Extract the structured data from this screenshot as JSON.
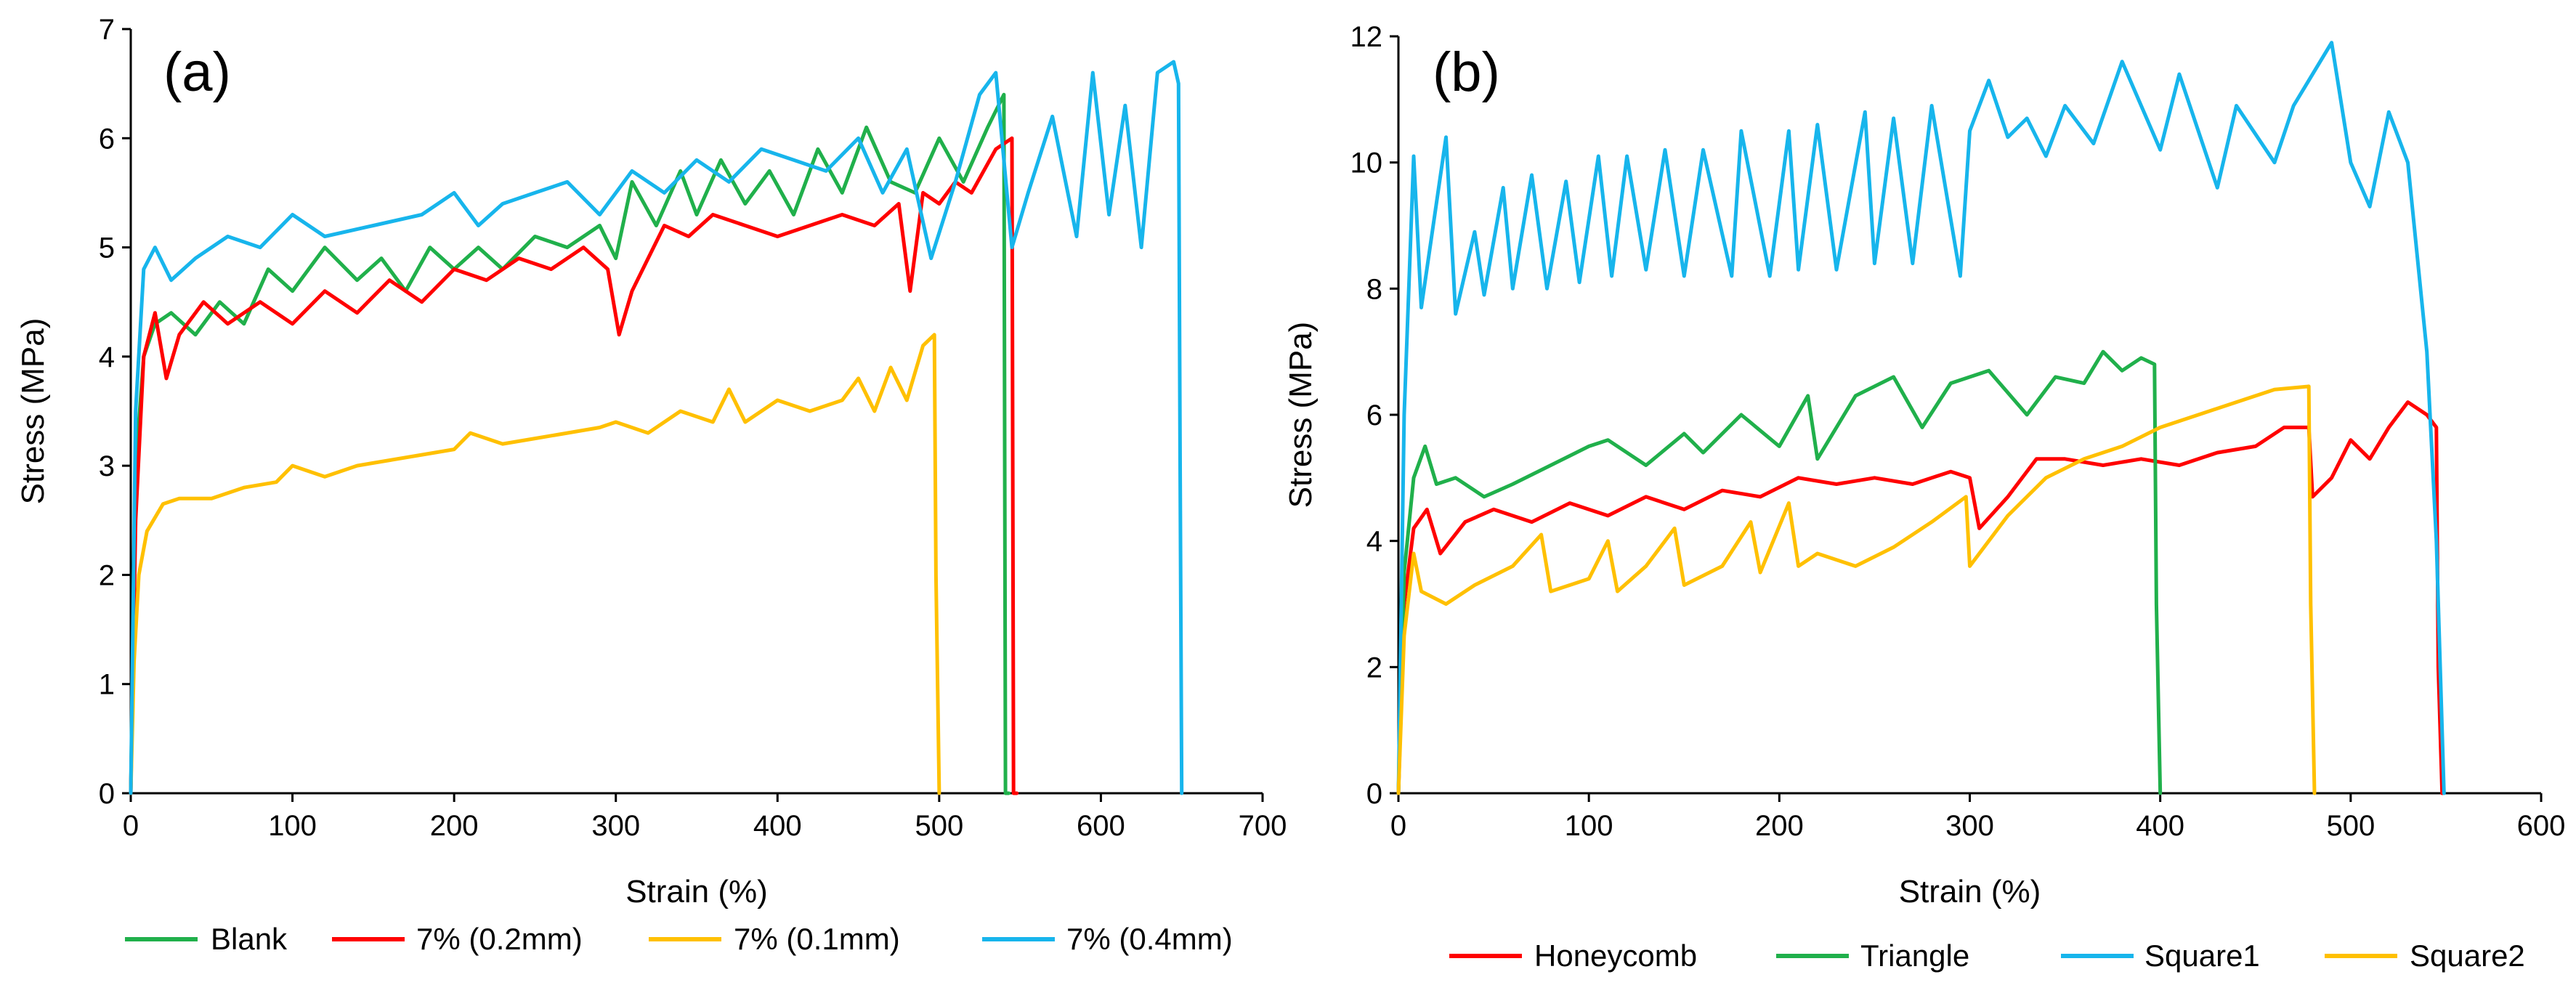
{
  "chart_data": [
    {
      "type": "line",
      "panel_label": "(a)",
      "xlabel": "Strain (%)",
      "ylabel": "Stress (MPa)",
      "xlim": [
        0,
        700
      ],
      "ylim": [
        0,
        7
      ],
      "xticks": [
        "0",
        "100",
        "200",
        "300",
        "400",
        "500",
        "600",
        "700"
      ],
      "yticks": [
        "0",
        "1",
        "2",
        "3",
        "4",
        "5",
        "6",
        "7"
      ],
      "series": [
        {
          "name": "Blank",
          "color": "#20B04B",
          "x": [
            0,
            3,
            8,
            15,
            25,
            40,
            55,
            70,
            85,
            100,
            120,
            140,
            155,
            170,
            185,
            200,
            215,
            230,
            250,
            270,
            290,
            300,
            310,
            325,
            340,
            350,
            365,
            380,
            395,
            410,
            425,
            440,
            455,
            470,
            485,
            500,
            515,
            530,
            540,
            541,
            543
          ],
          "y": [
            0,
            3.0,
            4.0,
            4.3,
            4.4,
            4.2,
            4.5,
            4.3,
            4.8,
            4.6,
            5.0,
            4.7,
            4.9,
            4.6,
            5.0,
            4.8,
            5.0,
            4.8,
            5.1,
            5.0,
            5.2,
            4.9,
            5.6,
            5.2,
            5.7,
            5.3,
            5.8,
            5.4,
            5.7,
            5.3,
            5.9,
            5.5,
            6.1,
            5.6,
            5.5,
            6.0,
            5.6,
            6.1,
            6.4,
            0,
            0
          ]
        },
        {
          "name": "7% (0.2mm)",
          "color": "#FF0000",
          "x": [
            0,
            3,
            8,
            15,
            22,
            30,
            45,
            60,
            80,
            100,
            120,
            140,
            160,
            180,
            200,
            220,
            240,
            260,
            280,
            295,
            302,
            310,
            320,
            330,
            345,
            360,
            380,
            400,
            420,
            440,
            460,
            475,
            482,
            490,
            500,
            510,
            520,
            535,
            545,
            546,
            548
          ],
          "y": [
            0,
            2.5,
            4.0,
            4.4,
            3.8,
            4.2,
            4.5,
            4.3,
            4.5,
            4.3,
            4.6,
            4.4,
            4.7,
            4.5,
            4.8,
            4.7,
            4.9,
            4.8,
            5.0,
            4.8,
            4.2,
            4.6,
            4.9,
            5.2,
            5.1,
            5.3,
            5.2,
            5.1,
            5.2,
            5.3,
            5.2,
            5.4,
            4.6,
            5.5,
            5.4,
            5.6,
            5.5,
            5.9,
            6.0,
            0,
            0
          ]
        },
        {
          "name": "7% (0.1mm)",
          "color": "#FFC000",
          "x": [
            0,
            2,
            5,
            10,
            20,
            30,
            50,
            70,
            90,
            100,
            120,
            140,
            160,
            180,
            200,
            210,
            230,
            250,
            270,
            290,
            300,
            320,
            340,
            360,
            370,
            380,
            400,
            420,
            440,
            450,
            460,
            470,
            480,
            490,
            497,
            498,
            500
          ],
          "y": [
            0,
            1.2,
            2.0,
            2.4,
            2.65,
            2.7,
            2.7,
            2.8,
            2.85,
            3.0,
            2.9,
            3.0,
            3.05,
            3.1,
            3.15,
            3.3,
            3.2,
            3.25,
            3.3,
            3.35,
            3.4,
            3.3,
            3.5,
            3.4,
            3.7,
            3.4,
            3.6,
            3.5,
            3.6,
            3.8,
            3.5,
            3.9,
            3.6,
            4.1,
            4.2,
            2.0,
            0
          ]
        },
        {
          "name": "7% (0.4mm)",
          "color": "#17B5EC",
          "x": [
            0,
            3,
            8,
            15,
            25,
            40,
            60,
            80,
            100,
            120,
            150,
            180,
            200,
            215,
            230,
            250,
            270,
            290,
            310,
            330,
            350,
            370,
            390,
            410,
            430,
            450,
            465,
            480,
            495,
            510,
            525,
            535,
            545,
            555,
            570,
            585,
            595,
            605,
            615,
            625,
            635,
            645,
            648,
            649,
            650
          ],
          "y": [
            0,
            3.5,
            4.8,
            5.0,
            4.7,
            4.9,
            5.1,
            5.0,
            5.3,
            5.1,
            5.2,
            5.3,
            5.5,
            5.2,
            5.4,
            5.5,
            5.6,
            5.3,
            5.7,
            5.5,
            5.8,
            5.6,
            5.9,
            5.8,
            5.7,
            6.0,
            5.5,
            5.9,
            4.9,
            5.6,
            6.4,
            6.6,
            5.0,
            5.5,
            6.2,
            5.1,
            6.6,
            5.3,
            6.3,
            5.0,
            6.6,
            6.7,
            6.5,
            3.0,
            0
          ]
        }
      ],
      "legend": [
        "Blank",
        "7% (0.2mm)",
        "7% (0.1mm)",
        "7% (0.4mm)"
      ],
      "legend_position": "bottom"
    },
    {
      "type": "line",
      "panel_label": "(b)",
      "xlabel": "Strain (%)",
      "ylabel": "Stress (MPa)",
      "xlim": [
        0,
        600
      ],
      "ylim": [
        0,
        12
      ],
      "xticks": [
        "0",
        "100",
        "200",
        "300",
        "400",
        "500",
        "600"
      ],
      "yticks": [
        "0",
        "2",
        "4",
        "6",
        "8",
        "10",
        "12"
      ],
      "series": [
        {
          "name": "Honeycomb",
          "color": "#FF0000",
          "x": [
            0,
            3,
            8,
            15,
            22,
            35,
            50,
            70,
            90,
            110,
            130,
            150,
            170,
            190,
            210,
            230,
            250,
            270,
            290,
            300,
            305,
            320,
            335,
            350,
            370,
            390,
            410,
            430,
            450,
            465,
            478,
            480,
            490,
            500,
            510,
            520,
            530,
            540,
            545,
            546,
            548
          ],
          "y": [
            0,
            3.0,
            4.2,
            4.5,
            3.8,
            4.3,
            4.5,
            4.3,
            4.6,
            4.4,
            4.7,
            4.5,
            4.8,
            4.7,
            5.0,
            4.9,
            5.0,
            4.9,
            5.1,
            5.0,
            4.2,
            4.7,
            5.3,
            5.3,
            5.2,
            5.3,
            5.2,
            5.4,
            5.5,
            5.8,
            5.8,
            4.7,
            5.0,
            5.6,
            5.3,
            5.8,
            6.2,
            6.0,
            5.8,
            2.0,
            0
          ]
        },
        {
          "name": "Triangle",
          "color": "#20B04B",
          "x": [
            0,
            3,
            8,
            14,
            20,
            30,
            45,
            60,
            80,
            100,
            110,
            130,
            150,
            160,
            180,
            200,
            215,
            220,
            240,
            260,
            275,
            290,
            310,
            330,
            345,
            360,
            370,
            380,
            390,
            397,
            398,
            400
          ],
          "y": [
            0,
            3.5,
            5.0,
            5.5,
            4.9,
            5.0,
            4.7,
            4.9,
            5.2,
            5.5,
            5.6,
            5.2,
            5.7,
            5.4,
            6.0,
            5.5,
            6.3,
            5.3,
            6.3,
            6.6,
            5.8,
            6.5,
            6.7,
            6.0,
            6.6,
            6.5,
            7.0,
            6.7,
            6.9,
            6.8,
            3.0,
            0
          ]
        },
        {
          "name": "Square1",
          "color": "#17B5EC",
          "x": [
            0,
            3,
            8,
            12,
            25,
            30,
            40,
            45,
            55,
            60,
            70,
            78,
            88,
            95,
            105,
            112,
            120,
            130,
            140,
            150,
            160,
            175,
            180,
            195,
            205,
            210,
            220,
            230,
            245,
            250,
            260,
            270,
            280,
            295,
            300,
            310,
            320,
            330,
            340,
            350,
            365,
            380,
            400,
            410,
            430,
            440,
            460,
            470,
            490,
            500,
            510,
            520,
            530,
            540,
            545,
            548,
            549
          ],
          "y": [
            0,
            6.0,
            10.1,
            7.7,
            10.4,
            7.6,
            8.9,
            7.9,
            9.6,
            8.0,
            9.8,
            8.0,
            9.7,
            8.1,
            10.1,
            8.2,
            10.1,
            8.3,
            10.2,
            8.2,
            10.2,
            8.2,
            10.5,
            8.2,
            10.5,
            8.3,
            10.6,
            8.3,
            10.8,
            8.4,
            10.7,
            8.4,
            10.9,
            8.2,
            10.5,
            11.3,
            10.4,
            10.7,
            10.1,
            10.9,
            10.3,
            11.6,
            10.2,
            11.4,
            9.6,
            10.9,
            10.0,
            10.9,
            11.9,
            10.0,
            9.3,
            10.8,
            10.0,
            7.0,
            4.0,
            1.0,
            0
          ]
        },
        {
          "name": "Square2",
          "color": "#FFC000",
          "x": [
            0,
            3,
            8,
            12,
            25,
            40,
            60,
            75,
            80,
            100,
            110,
            115,
            130,
            145,
            150,
            170,
            185,
            190,
            205,
            210,
            220,
            240,
            260,
            280,
            298,
            300,
            320,
            340,
            360,
            380,
            400,
            420,
            440,
            460,
            478,
            479,
            481
          ],
          "y": [
            0,
            2.5,
            3.8,
            3.2,
            3.0,
            3.3,
            3.6,
            4.1,
            3.2,
            3.4,
            4.0,
            3.2,
            3.6,
            4.2,
            3.3,
            3.6,
            4.3,
            3.5,
            4.6,
            3.6,
            3.8,
            3.6,
            3.9,
            4.3,
            4.7,
            3.6,
            4.4,
            5.0,
            5.3,
            5.5,
            5.8,
            6.0,
            6.2,
            6.4,
            6.45,
            3.0,
            0
          ]
        }
      ],
      "legend": [
        "Honeycomb",
        "Triangle",
        "Square1",
        "Square2"
      ],
      "legend_position": "bottom"
    }
  ]
}
